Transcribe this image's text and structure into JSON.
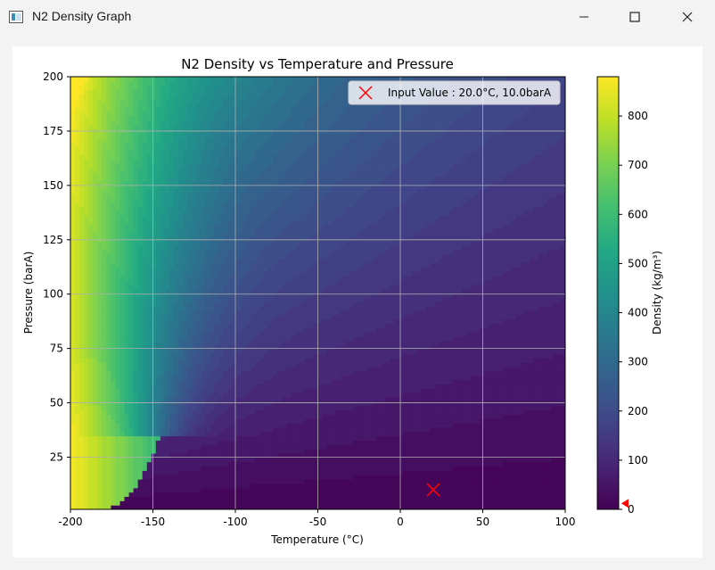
{
  "window": {
    "title": "N2 Density Graph"
  },
  "chart_data": {
    "type": "heatmap",
    "title": "N2 Density vs Temperature and Pressure",
    "xlabel": "Temperature (°C)",
    "ylabel": "Pressure (barA)",
    "xlim": [
      -200,
      100
    ],
    "ylim": [
      1,
      200
    ],
    "xticks": [
      "-200",
      "-150",
      "-100",
      "-50",
      "0",
      "50",
      "100"
    ],
    "yticks": [
      "25",
      "50",
      "75",
      "100",
      "125",
      "150",
      "175",
      "200"
    ],
    "grid": true,
    "colormap": "viridis",
    "colorbar": {
      "label": "Density (kg/m³)",
      "range": [
        0,
        880
      ],
      "ticks": [
        "0",
        "100",
        "200",
        "300",
        "400",
        "500",
        "600",
        "700",
        "800"
      ],
      "marker_value": 12,
      "marker_color": "#ff0000"
    },
    "marker": {
      "x": 20.0,
      "y": 10.0,
      "color": "#ff0000",
      "symbol": "x"
    },
    "legend": {
      "text": "Input Value : 20.0°C, 10.0barA",
      "placement": "top-right"
    }
  }
}
